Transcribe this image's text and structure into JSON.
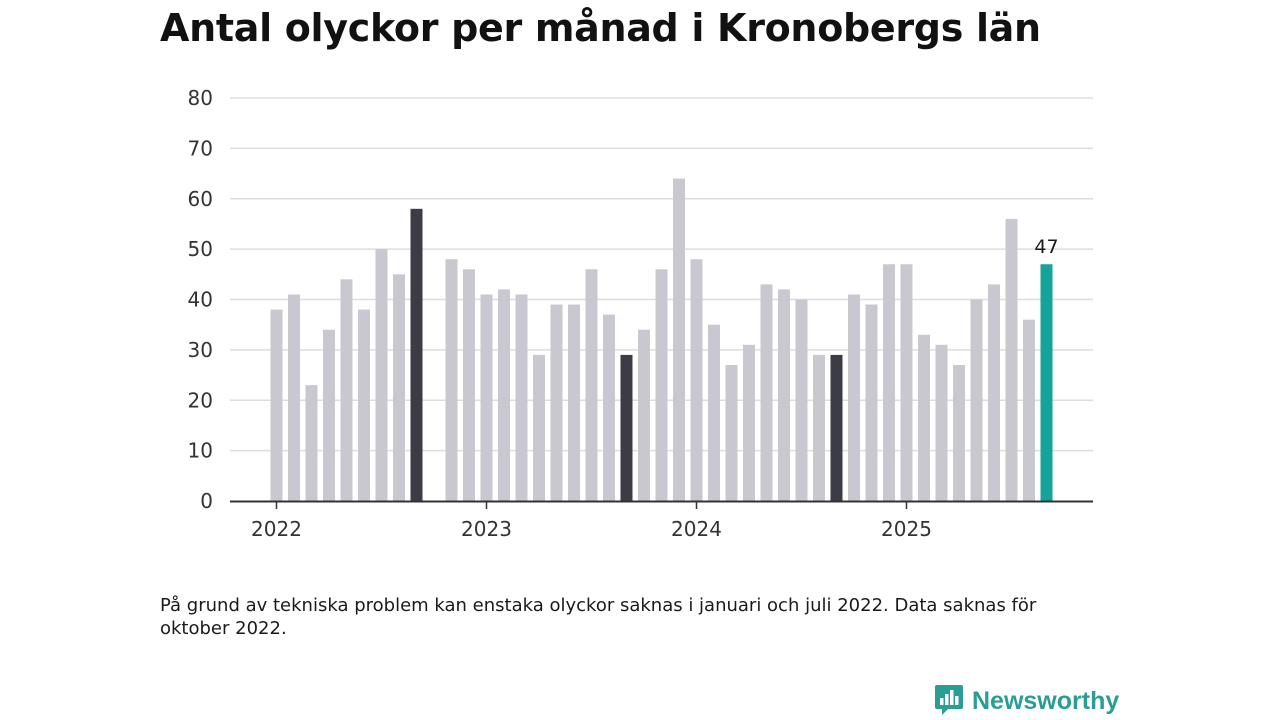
{
  "chart_data": {
    "type": "bar",
    "title": "Antal olyckor per månad i Kronobergs län",
    "xlabel": "",
    "ylabel": "",
    "ylim": [
      0,
      80
    ],
    "y_ticks": [
      "0",
      "10",
      "20",
      "30",
      "40",
      "50",
      "60",
      "70",
      "80"
    ],
    "x_ticks": [
      "2022",
      "2023",
      "2024",
      "2025"
    ],
    "months": [
      "2022-01",
      "2022-02",
      "2022-03",
      "2022-04",
      "2022-05",
      "2022-06",
      "2022-07",
      "2022-08",
      "2022-09",
      "2022-10",
      "2022-11",
      "2022-12",
      "2023-01",
      "2023-02",
      "2023-03",
      "2023-04",
      "2023-05",
      "2023-06",
      "2023-07",
      "2023-08",
      "2023-09",
      "2023-10",
      "2023-11",
      "2023-12",
      "2024-01",
      "2024-02",
      "2024-03",
      "2024-04",
      "2024-05",
      "2024-06",
      "2024-07",
      "2024-08",
      "2024-09",
      "2024-10",
      "2024-11",
      "2024-12",
      "2025-01",
      "2025-02",
      "2025-03",
      "2025-04",
      "2025-05",
      "2025-06",
      "2025-07",
      "2025-08",
      "2025-09"
    ],
    "values": [
      38,
      41,
      23,
      34,
      44,
      38,
      50,
      45,
      58,
      null,
      48,
      46,
      41,
      42,
      41,
      29,
      39,
      39,
      46,
      37,
      29,
      34,
      46,
      64,
      48,
      35,
      27,
      31,
      43,
      42,
      40,
      29,
      29,
      41,
      39,
      47,
      47,
      33,
      31,
      27,
      40,
      43,
      56,
      36,
      47
    ],
    "highlight_dark": [
      "2022-09",
      "2023-09",
      "2024-09"
    ],
    "highlight_current": "2025-09",
    "value_label": "47",
    "colors": {
      "default": "#c9c8d0",
      "dark": "#3c3c46",
      "current": "#16a39a",
      "grid": "#dddddd",
      "axis": "#333333"
    }
  },
  "note": "På grund av tekniska problem kan enstaka olyckor saknas i januari och juli 2022. Data saknas för oktober 2022.",
  "brand": {
    "name": "Newsworthy",
    "color": "#2a9d95"
  }
}
